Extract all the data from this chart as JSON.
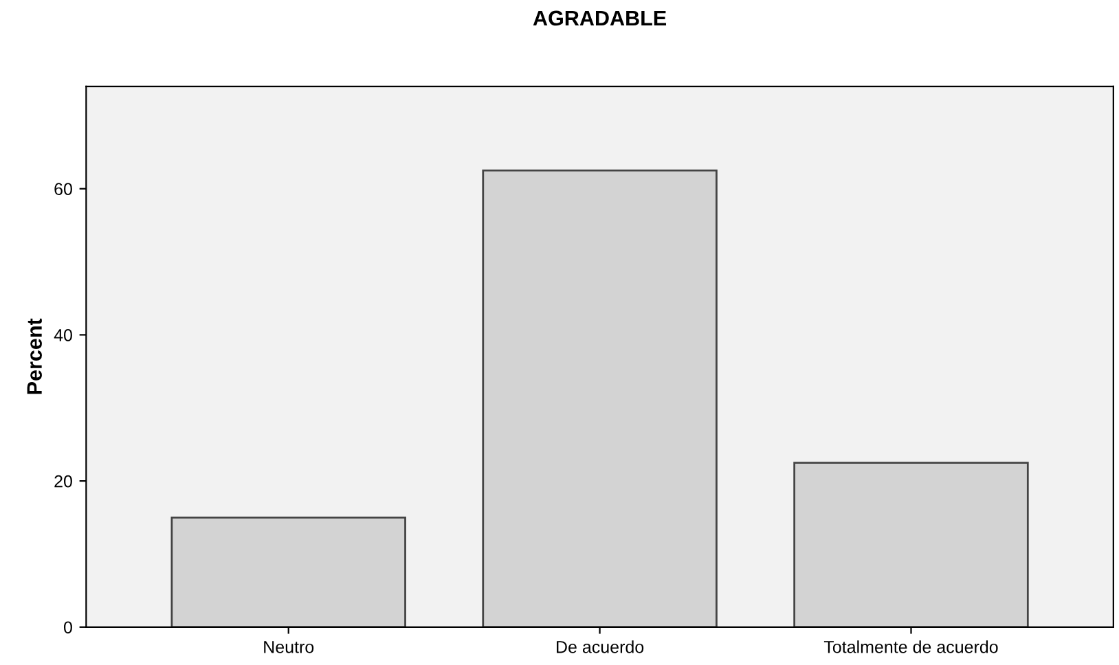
{
  "chart_data": {
    "type": "bar",
    "title": "AGRADABLE",
    "ylabel": "Percent",
    "categories": [
      "Neutro",
      "De acuerdo",
      "Totalmente de acuerdo"
    ],
    "values": [
      15.0,
      62.5,
      22.5
    ],
    "color": "#d3d3d3",
    "ylim": [
      0,
      74
    ],
    "yticks": [
      0,
      20,
      40,
      60
    ],
    "grid": false,
    "legend": false
  }
}
